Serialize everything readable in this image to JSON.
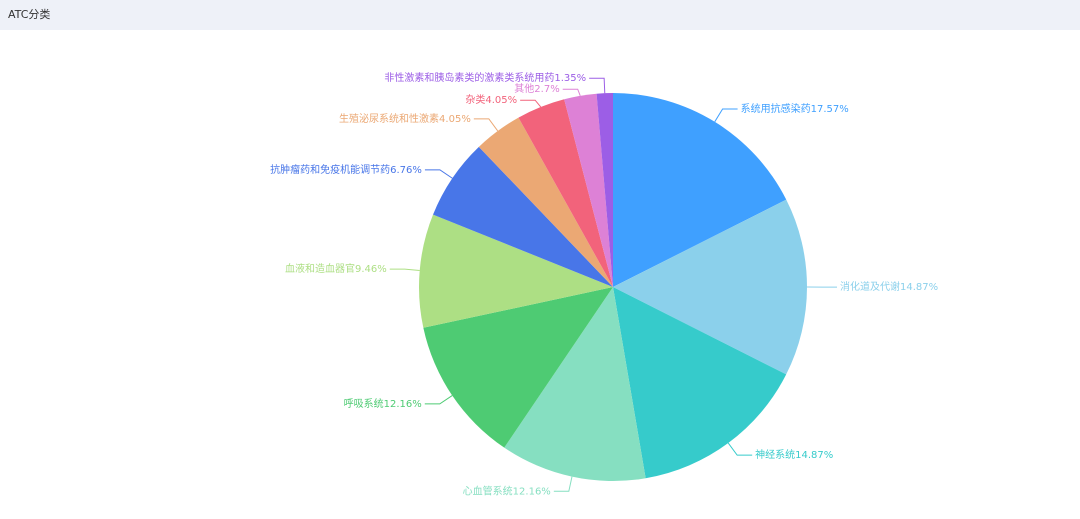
{
  "chart_data": {
    "type": "pie",
    "title": "ATC分类",
    "categories": [
      "系统用抗感染药",
      "消化道及代谢",
      "神经系统",
      "心血管系统",
      "呼吸系统",
      "血液和造血器官",
      "抗肿瘤药和免疫机能调节药",
      "生殖泌尿系统和性激素",
      "杂类",
      "其他",
      "非性激素和胰岛素类的激素类系统用药"
    ],
    "values": [
      17.57,
      14.87,
      14.87,
      12.16,
      12.16,
      9.46,
      6.76,
      4.05,
      4.05,
      2.7,
      1.35
    ],
    "value_labels": [
      "17.57%",
      "14.87%",
      "14.87%",
      "12.16%",
      "12.16%",
      "9.46%",
      "6.76%",
      "4.05%",
      "4.05%",
      "2.7%",
      "1.35%"
    ],
    "colors": [
      "#3fa0ff",
      "#8bd0eb",
      "#36cbcb",
      "#86dfc1",
      "#4ecb73",
      "#addf84",
      "#4876e8",
      "#eba874",
      "#f2637b",
      "#dd81d6",
      "#9c5ee6"
    ]
  }
}
